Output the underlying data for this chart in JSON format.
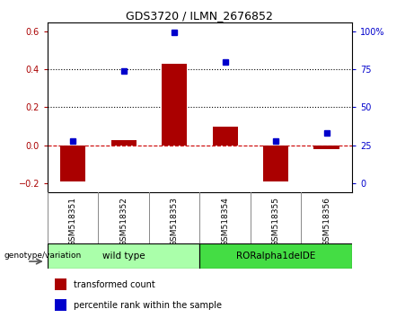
{
  "title": "GDS3720 / ILMN_2676852",
  "samples": [
    "GSM518351",
    "GSM518352",
    "GSM518353",
    "GSM518354",
    "GSM518355",
    "GSM518356"
  ],
  "red_values": [
    -0.19,
    0.025,
    0.43,
    0.1,
    -0.19,
    -0.02
  ],
  "blue_values": [
    0.02,
    0.39,
    0.595,
    0.44,
    0.02,
    0.065
  ],
  "ylim": [
    -0.25,
    0.65
  ],
  "yticks_left": [
    -0.2,
    0.0,
    0.2,
    0.4,
    0.6
  ],
  "right_ytick_positions": [
    -0.2,
    0.0,
    0.2,
    0.4,
    0.6
  ],
  "right_ytick_labels": [
    "0",
    "25",
    "50",
    "75",
    "100%"
  ],
  "hlines": [
    0.4,
    0.2
  ],
  "red_color": "#aa0000",
  "blue_color": "#0000cc",
  "bar_width": 0.5,
  "groups": [
    {
      "label": "wild type",
      "indices": [
        0,
        1,
        2
      ],
      "color": "#aaffaa"
    },
    {
      "label": "RORalpha1delDE",
      "indices": [
        3,
        4,
        5
      ],
      "color": "#44dd44"
    }
  ],
  "genotype_label": "genotype/variation",
  "legend_red": "transformed count",
  "legend_blue": "percentile rank within the sample",
  "axhline_y": 0.0,
  "axhline_color": "#cc0000",
  "background_plot": "#ffffff",
  "background_tick_area": "#cccccc"
}
